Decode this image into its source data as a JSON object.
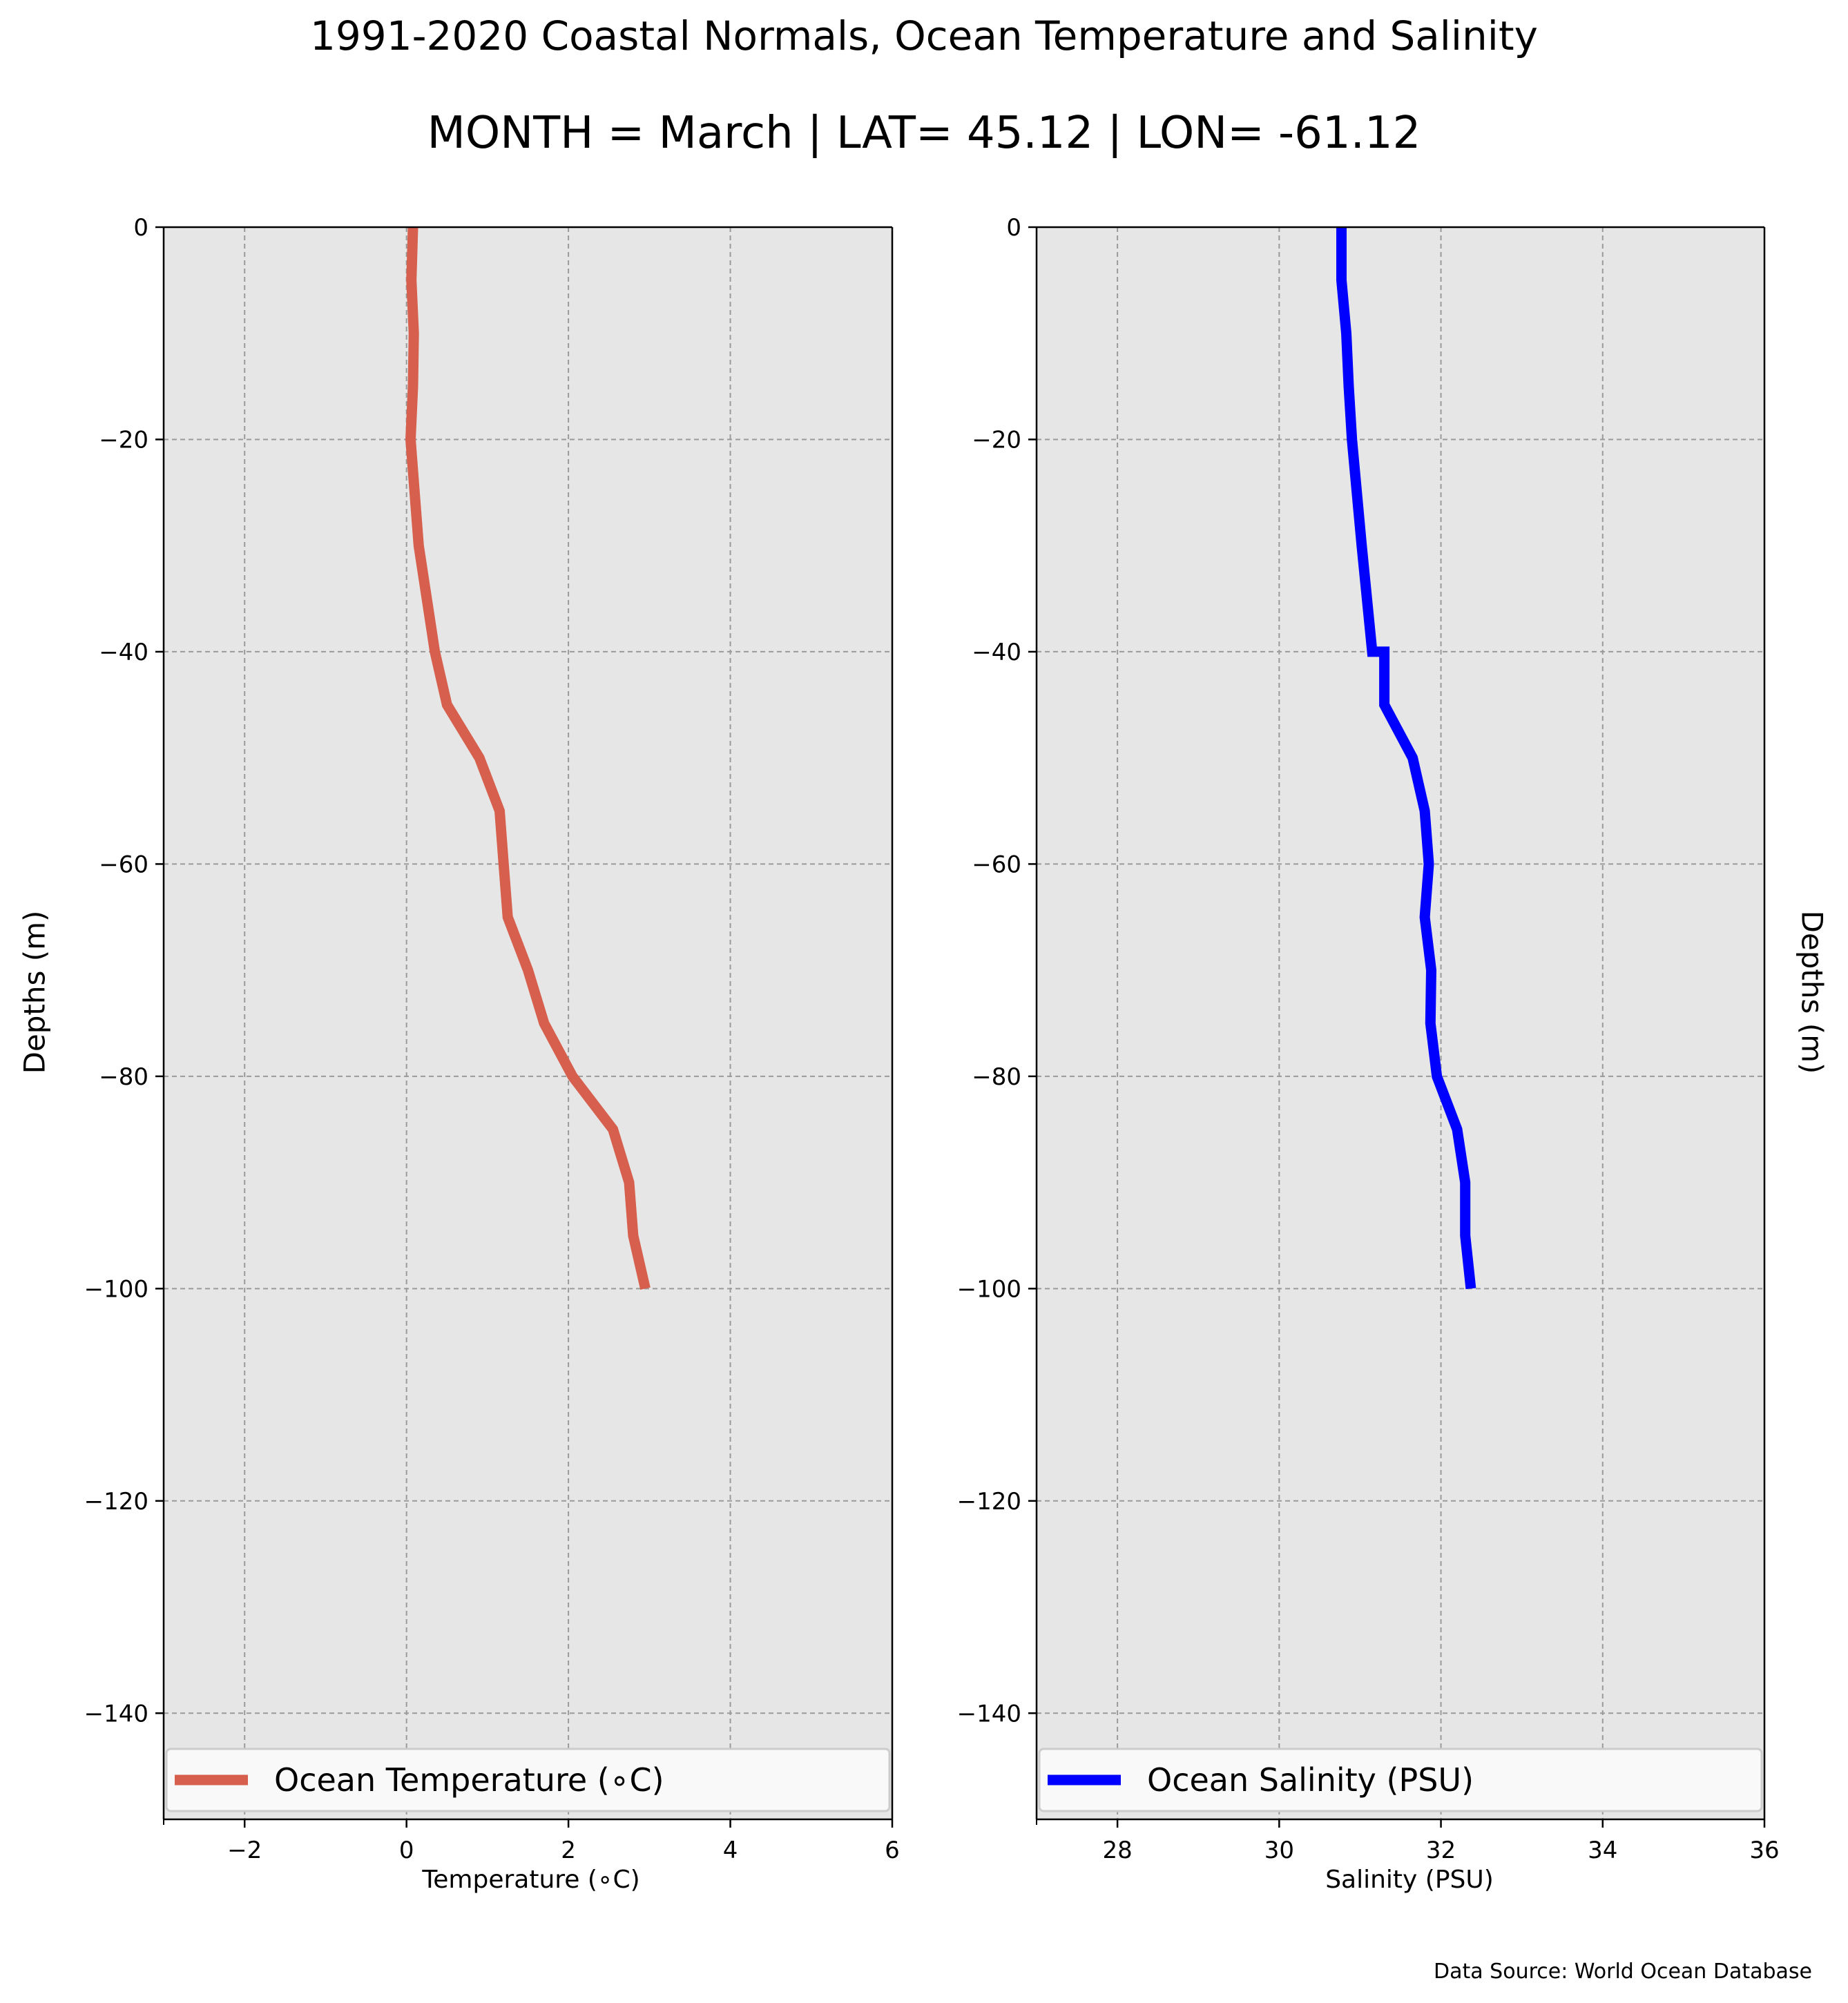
{
  "figure": {
    "title": "1991-2020 Coastal Normals, Ocean Temperature and Salinity",
    "subtitle": "MONTH = March | LAT= 45.12 | LON= -61.12",
    "source": "Data Source: World Ocean Database",
    "y_axis_label": "Depths (m)",
    "background_color": "#e6e6e6",
    "grid": true
  },
  "chart_data": [
    {
      "type": "line",
      "xlabel": "Temperature (∘C)",
      "ylabel": "Depths (m)",
      "xlim": [
        -3,
        6
      ],
      "ylim": [
        -150,
        0
      ],
      "xticks": [
        -2,
        0,
        2,
        4,
        6
      ],
      "xtick_labels": [
        "−2",
        "0",
        "2",
        "4",
        "6"
      ],
      "yticks": [
        0,
        -20,
        -40,
        -60,
        -80,
        -100,
        -120,
        -140
      ],
      "ytick_labels": [
        "0",
        "−20",
        "−40",
        "−60",
        "−80",
        "−100",
        "−120",
        "−140"
      ],
      "legend_position": "bottom",
      "series": [
        {
          "name": "Ocean Temperature (∘C)",
          "color": "#d6604d",
          "x": [
            0.08,
            0.06,
            0.09,
            0.08,
            0.05,
            0.15,
            0.35,
            0.5,
            0.9,
            1.15,
            1.2,
            1.25,
            1.5,
            1.7,
            2.05,
            2.55,
            2.75,
            2.8,
            2.95
          ],
          "y": [
            0,
            -5,
            -10,
            -15,
            -20,
            -30,
            -40,
            -45,
            -50,
            -55,
            -60,
            -65,
            -70,
            -75,
            -80,
            -85,
            -90,
            -95,
            -100
          ]
        }
      ]
    },
    {
      "type": "line",
      "xlabel": "Salinity (PSU)",
      "ylabel": "Depths (m)",
      "xlim": [
        27,
        36
      ],
      "ylim": [
        -150,
        0
      ],
      "xticks": [
        28,
        30,
        32,
        34,
        36
      ],
      "xtick_labels": [
        "28",
        "30",
        "32",
        "34",
        "36"
      ],
      "yticks": [
        0,
        -20,
        -40,
        -60,
        -80,
        -100,
        -120,
        -140
      ],
      "ytick_labels": [
        "0",
        "−20",
        "−40",
        "−60",
        "−80",
        "−100",
        "−120",
        "−140"
      ],
      "legend_position": "bottom",
      "series": [
        {
          "name": "Ocean Salinity (PSU)",
          "color": "#0000ff",
          "x": [
            30.77,
            30.77,
            30.83,
            30.86,
            30.9,
            31.02,
            31.15,
            31.3,
            31.3,
            31.65,
            31.8,
            31.85,
            31.8,
            31.88,
            31.87,
            31.95,
            32.2,
            32.3,
            32.3,
            32.37
          ],
          "y": [
            0,
            -5,
            -10,
            -15,
            -20,
            -30,
            -40,
            -40,
            -45,
            -50,
            -55,
            -60,
            -65,
            -70,
            -75,
            -80,
            -85,
            -90,
            -95,
            -100
          ]
        }
      ]
    }
  ]
}
